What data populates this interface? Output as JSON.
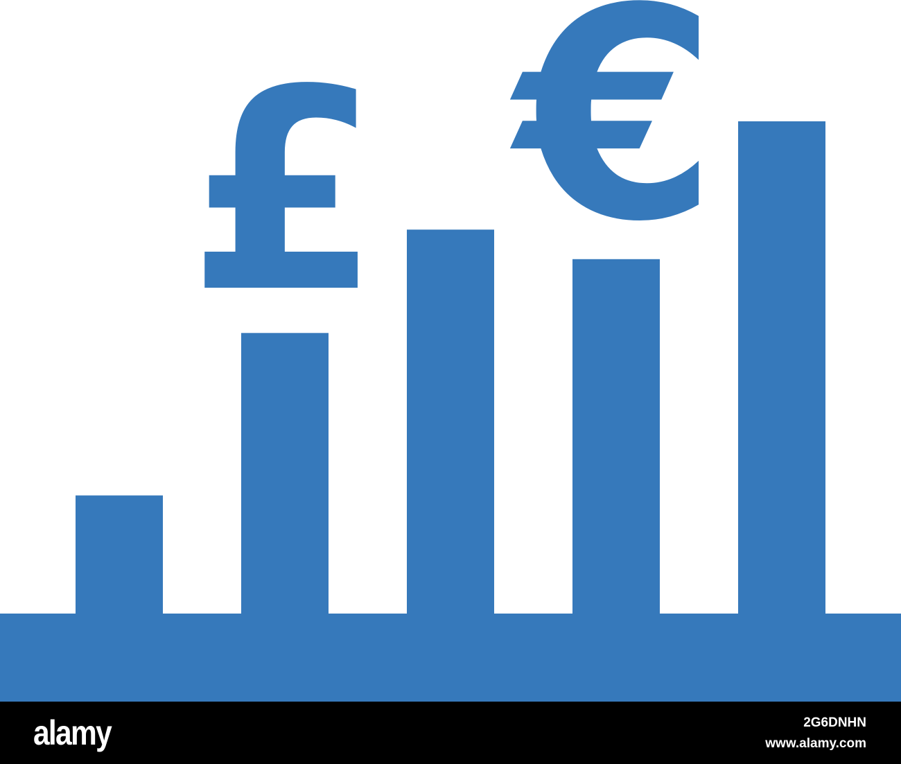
{
  "icon": {
    "name": "currency-growth-bar-chart-icon",
    "color": "#3679bb",
    "symbols": [
      "£",
      "€"
    ],
    "bar_levels": [
      0.24,
      0.57,
      0.78,
      0.72,
      1.0
    ]
  },
  "watermark": {
    "logo": "alamy",
    "image_id": "2G6DNHN",
    "site": "www.alamy.com"
  }
}
